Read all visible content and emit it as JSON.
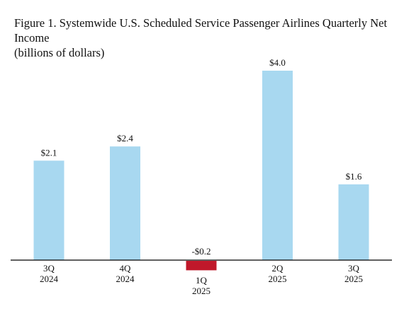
{
  "title": "Figure 1. Systemwide U.S. Scheduled Service Passenger Airlines Quarterly Net Income",
  "subtitle": "(billions of dollars)",
  "chart_data": {
    "type": "bar",
    "categories": [
      {
        "quarter": "3Q",
        "year": "2024"
      },
      {
        "quarter": "4Q",
        "year": "2024"
      },
      {
        "quarter": "1Q",
        "year": "2025"
      },
      {
        "quarter": "2Q",
        "year": "2025"
      },
      {
        "quarter": "3Q",
        "year": "2025"
      }
    ],
    "values": [
      2.1,
      2.4,
      -0.2,
      4.0,
      1.6
    ],
    "data_labels": [
      "$2.1",
      "$2.4",
      "-$0.2",
      "$4.0",
      "$1.6"
    ],
    "colors": {
      "positive": "#a8d8f0",
      "negative": "#c0182a",
      "axis": "#000000"
    },
    "ylim": [
      -0.4,
      4.3
    ],
    "grid": false,
    "legend": "none"
  }
}
